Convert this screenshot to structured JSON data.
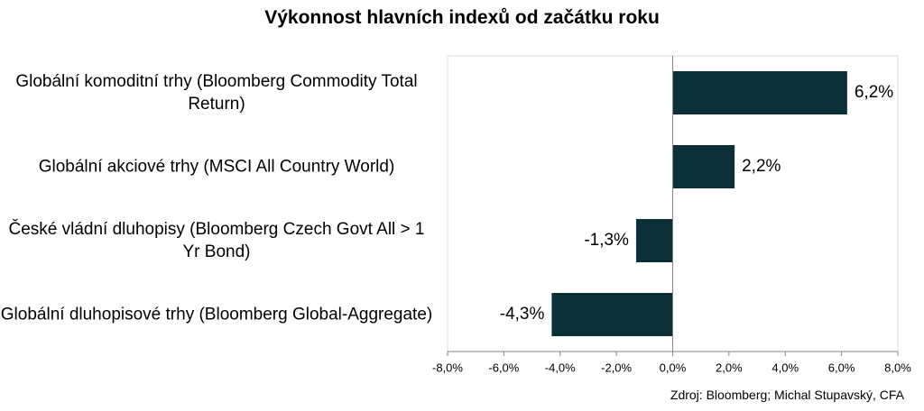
{
  "chart_data": {
    "type": "hbar",
    "title": "Výkonnost hlavních indexů od začátku roku",
    "source": "Zdroj: Bloomberg; Michal Stupavský, CFA",
    "categories": [
      "Globální komoditní trhy (Bloomberg Commodity Total Return)",
      "Globální akciové trhy (MSCI All Country World)",
      "České vládní dluhopisy (Bloomberg Czech Govt All > 1 Yr Bond)",
      "Globální dluhopisové trhy (Bloomberg Global-Aggregate)"
    ],
    "values": [
      6.2,
      2.2,
      -1.3,
      -4.3
    ],
    "value_labels": [
      "6,2%",
      "2,2%",
      "-1,3%",
      "-4,3%"
    ],
    "color": "#0b3038",
    "xlim": [
      -8,
      8
    ],
    "xticks": [
      {
        "value": -8,
        "label": "-8,0%"
      },
      {
        "value": -6,
        "label": "-6,0%"
      },
      {
        "value": -4,
        "label": "-4,0%"
      },
      {
        "value": -2,
        "label": "-2,0%"
      },
      {
        "value": 0,
        "label": "0,0%"
      },
      {
        "value": 2,
        "label": "2,0%"
      },
      {
        "value": 4,
        "label": "4,0%"
      },
      {
        "value": 6,
        "label": "6,0%"
      },
      {
        "value": 8,
        "label": "8,0%"
      }
    ]
  }
}
